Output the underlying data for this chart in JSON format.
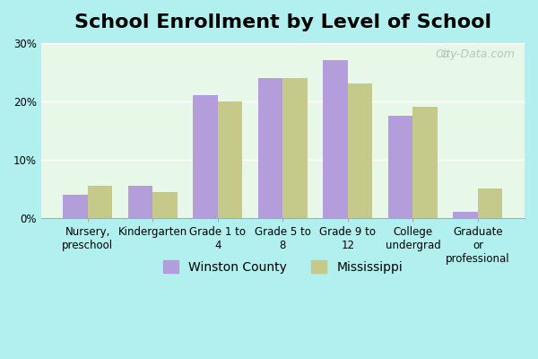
{
  "title": "School Enrollment by Level of School",
  "categories": [
    "Nursery,\npreschool",
    "Kindergarten",
    "Grade 1 to\n4",
    "Grade 5 to\n8",
    "Grade 9 to\n12",
    "College\nundergrad",
    "Graduate\nor\nprofessional"
  ],
  "winston": [
    4.0,
    5.5,
    21.0,
    24.0,
    27.0,
    17.5,
    1.0
  ],
  "mississippi": [
    5.5,
    4.5,
    20.0,
    24.0,
    23.0,
    19.0,
    5.0
  ],
  "winston_color": "#b39ddb",
  "mississippi_color": "#c5c98a",
  "plot_bg_color": "#e8f8e8",
  "bar_width": 0.38,
  "ylim": [
    0,
    30
  ],
  "yticks": [
    0,
    10,
    20,
    30
  ],
  "yticklabels": [
    "0%",
    "10%",
    "20%",
    "30%"
  ],
  "legend_winston": "Winston County",
  "legend_mississippi": "Mississippi",
  "title_fontsize": 16,
  "tick_fontsize": 8.5,
  "legend_fontsize": 10,
  "watermark": "City-Data.com"
}
